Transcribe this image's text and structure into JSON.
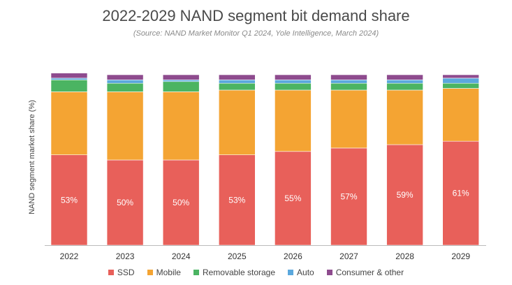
{
  "chart_data": {
    "type": "bar",
    "stacked": true,
    "title": "2022-2029 NAND segment bit demand share",
    "subtitle": "(Source: NAND Market Monitor Q1 2024, Yole Intelligence, March 2024)",
    "ylabel": "NAND segment market share (%)",
    "ylim": [
      0,
      100
    ],
    "grid": false,
    "legend_position": "bottom",
    "categories": [
      "2022",
      "2023",
      "2024",
      "2025",
      "2026",
      "2027",
      "2028",
      "2029"
    ],
    "series": [
      {
        "name": "SSD",
        "color": "#e8605a",
        "values": [
          53,
          50,
          50,
          53,
          55,
          57,
          59,
          61
        ],
        "labels": [
          "53%",
          "50%",
          "50%",
          "53%",
          "55%",
          "57%",
          "59%",
          "61%"
        ]
      },
      {
        "name": "Mobile",
        "color": "#f4a433",
        "values": [
          37,
          40,
          40,
          38,
          36,
          34,
          32,
          31
        ]
      },
      {
        "name": "Removable storage",
        "color": "#4bb462",
        "values": [
          7,
          5,
          6,
          4,
          4,
          4,
          4,
          3
        ]
      },
      {
        "name": "Auto",
        "color": "#5ba8dd",
        "values": [
          1,
          2,
          1,
          2,
          2,
          2,
          2,
          3
        ]
      },
      {
        "name": "Consumer & other",
        "color": "#8e4b8e",
        "values": [
          3,
          3,
          3,
          3,
          3,
          3,
          3,
          2
        ]
      }
    ]
  }
}
